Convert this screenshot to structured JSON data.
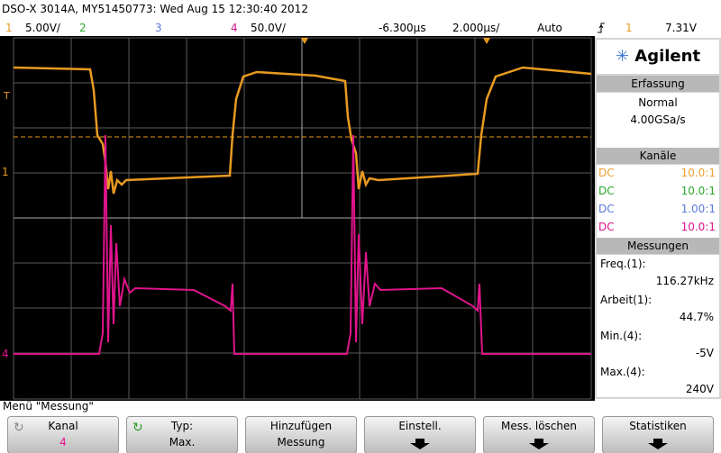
{
  "header": {
    "title": "DSO-X 3014A, MY51450773: Wed Aug 15 12:30:40 2012"
  },
  "status": {
    "ch1": "1",
    "ch1_scale": "5.00V/",
    "ch2": "2",
    "ch3": "3",
    "ch4": "4",
    "ch4_scale": "50.0V/",
    "delay": "-6.300µs",
    "timebase": "2.000µs/",
    "trigger_mode": "Auto",
    "trigger_source": "1",
    "trigger_level": "7.31V"
  },
  "markers": {
    "trigger": "T",
    "ch1": "1",
    "ch4": "4"
  },
  "panel": {
    "brand": "Agilent",
    "acquisition": {
      "title": "Erfassung",
      "mode": "Normal",
      "rate": "4.00GSa/s"
    },
    "channels": {
      "title": "Kanäle",
      "rows": [
        {
          "coupling": "DC",
          "probe": "10.0:1"
        },
        {
          "coupling": "DC",
          "probe": "10.0:1"
        },
        {
          "coupling": "DC",
          "probe": "1.00:1"
        },
        {
          "coupling": "DC",
          "probe": "10.0:1"
        }
      ]
    },
    "measurements": {
      "title": "Messungen",
      "items": [
        {
          "label": "Freq.(1):",
          "value": "116.27kHz"
        },
        {
          "label": "Arbeit(1):",
          "value": "44.7%"
        },
        {
          "label": "Min.(4):",
          "value": "-5V"
        },
        {
          "label": "Max.(4):",
          "value": "240V"
        }
      ]
    }
  },
  "menu": {
    "title": "Menü \"Messung\"",
    "softkeys": [
      {
        "label": "Kanal",
        "value": "4"
      },
      {
        "label": "Typ:",
        "value": "Max."
      },
      {
        "label": "Hinzufügen",
        "value": "Messung"
      },
      {
        "label": "Einstell."
      },
      {
        "label": "Mess. löschen"
      },
      {
        "label": "Statistiken"
      }
    ]
  }
}
